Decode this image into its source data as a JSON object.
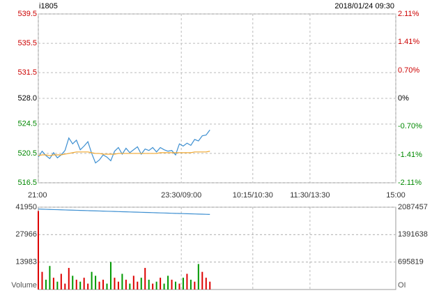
{
  "chart_data": [
    {
      "type": "line",
      "title": "i1805",
      "subtitle": "2018/01/24 09:30",
      "x": [
        0,
        4,
        8,
        12,
        16,
        20,
        24,
        28,
        32,
        36,
        40,
        44,
        48,
        52,
        56,
        60,
        64,
        68,
        72,
        76,
        80,
        84,
        88,
        92,
        96,
        100,
        104,
        108,
        112,
        116,
        120,
        124,
        128,
        132,
        136,
        140,
        144,
        148,
        152,
        156,
        160,
        164,
        168,
        172,
        176,
        180
      ],
      "series": [
        {
          "name": "price",
          "color": "#3d8fd1",
          "values": [
            520.0,
            520.8,
            520.2,
            519.8,
            520.6,
            519.9,
            520.3,
            520.9,
            522.6,
            521.8,
            522.3,
            521.0,
            521.5,
            522.1,
            520.5,
            519.2,
            519.6,
            520.3,
            520.0,
            519.5,
            520.8,
            521.3,
            520.4,
            521.2,
            520.6,
            521.0,
            521.4,
            520.4,
            521.1,
            520.9,
            521.3,
            520.7,
            521.3,
            521.0,
            520.8,
            520.9,
            520.3,
            521.8,
            521.5,
            521.9,
            521.6,
            522.4,
            522.2,
            522.9,
            523.0,
            523.7
          ]
        },
        {
          "name": "average",
          "color": "#f0a830",
          "values": [
            520.2,
            520.3,
            520.3,
            520.2,
            520.3,
            520.3,
            520.3,
            520.4,
            520.5,
            520.6,
            520.7,
            520.7,
            520.7,
            520.7,
            520.6,
            520.5,
            520.5,
            520.4,
            520.4,
            520.4,
            520.4,
            520.5,
            520.5,
            520.5,
            520.5,
            520.5,
            520.5,
            520.5,
            520.5,
            520.5,
            520.5,
            520.5,
            520.6,
            520.6,
            520.6,
            520.6,
            520.6,
            520.6,
            520.6,
            520.6,
            520.6,
            520.7,
            520.7,
            520.7,
            520.7,
            520.8
          ]
        }
      ],
      "xlim": [
        0,
        375
      ],
      "xticks": [
        {
          "value": 0,
          "label": "21:00"
        },
        {
          "value": 150,
          "label": "23:30/09:00"
        },
        {
          "value": 225,
          "label": "10:15/10:30"
        },
        {
          "value": 285,
          "label": "11:30/13:30"
        },
        {
          "value": 375,
          "label": "15:00"
        }
      ],
      "ylim": [
        516.5,
        539.5
      ],
      "yticks": [
        539.5,
        535.5,
        531.5,
        {
          "value": 528,
          "label": "528.0"
        },
        524.5,
        520.5,
        516.5
      ],
      "y2lim": [
        -2.11,
        2.11
      ],
      "y2ticks": [
        {
          "value": 2.11,
          "label": "2.11%"
        },
        {
          "value": 1.41,
          "label": "1.41%"
        },
        {
          "value": 0.7,
          "label": "0.70%"
        },
        {
          "value": 0,
          "label": "0%"
        },
        {
          "value": -0.7,
          "label": "-0.70%"
        },
        {
          "value": -1.41,
          "label": "-1.41%"
        },
        {
          "value": -2.11,
          "label": "-2.11%"
        }
      ],
      "up_color": "#cc0000",
      "down_color": "#008800",
      "flat_color": "#000000",
      "grid": true
    },
    {
      "type": "bar",
      "x": [
        0,
        4,
        8,
        12,
        16,
        20,
        24,
        28,
        32,
        36,
        40,
        44,
        48,
        52,
        56,
        60,
        64,
        68,
        72,
        76,
        80,
        84,
        88,
        92,
        96,
        100,
        104,
        108,
        112,
        116,
        120,
        124,
        128,
        132,
        136,
        140,
        144,
        148,
        152,
        156,
        160,
        164,
        168,
        172,
        176,
        180
      ],
      "xlim": [
        0,
        375
      ],
      "series": [
        {
          "name": "Volume",
          "values": [
            40000,
            9000,
            5000,
            12000,
            6000,
            4000,
            8000,
            3000,
            11000,
            7000,
            5000,
            4000,
            6000,
            3000,
            9000,
            7000,
            4000,
            5000,
            3000,
            14000,
            6000,
            4000,
            8000,
            5000,
            3000,
            7000,
            4000,
            6000,
            11000,
            5000,
            3000,
            4000,
            6000,
            3000,
            7000,
            5000,
            4000,
            3000,
            6000,
            8000,
            5000,
            4000,
            13000,
            9000,
            6000,
            4000
          ]
        },
        {
          "name": "OI",
          "axis": "y2",
          "color": "#3d8fd1",
          "values": [
            2040000,
            2036000,
            2033000,
            2030000,
            2027000,
            2024000,
            2021000,
            2018000,
            2015000,
            2012000,
            2009000,
            2006000,
            2003000,
            2000000,
            1997000,
            1994000,
            1991000,
            1988000,
            1985000,
            1982000,
            1979000,
            1976000,
            1973000,
            1970000,
            1967000,
            1964000,
            1961000,
            1958000,
            1955000,
            1952000,
            1949000,
            1946000,
            1943000,
            1940000,
            1937000,
            1934000,
            1931000,
            1928000,
            1925000,
            1922000,
            1919000,
            1916000,
            1913000,
            1910000,
            1907000,
            1904000
          ]
        }
      ],
      "ylim": [
        0,
        41950
      ],
      "yticks": [
        41950,
        27966,
        13983
      ],
      "y2lim": [
        0,
        2087457
      ],
      "y2ticks": [
        2087457,
        1391638,
        695819
      ],
      "up_color": "#dd0000",
      "down_color": "#009900",
      "grid": true
    }
  ]
}
